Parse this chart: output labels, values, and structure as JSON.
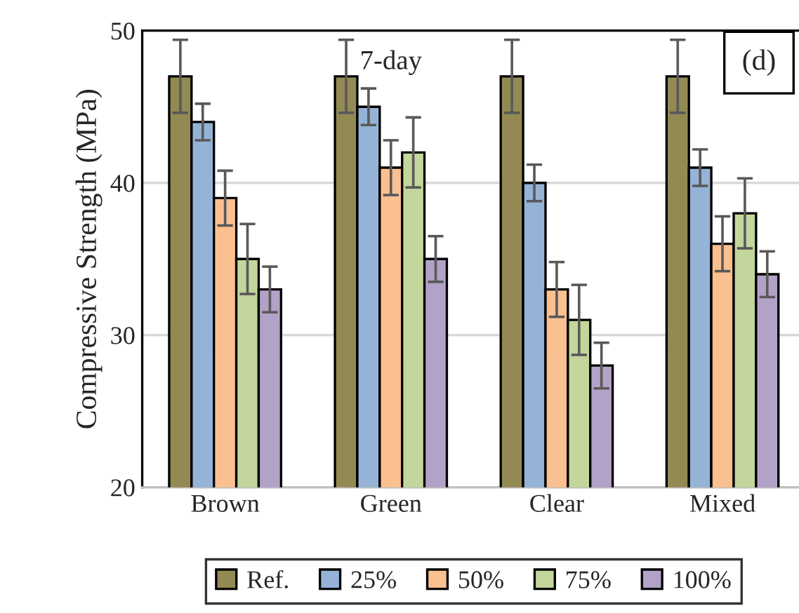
{
  "chart_data": {
    "type": "bar",
    "ylabel": "Compressive Strength (MPa)",
    "categories": [
      "Brown",
      "Green",
      "Clear",
      "Mixed"
    ],
    "series": [
      {
        "name": "Ref.",
        "color": "#938953",
        "values": [
          47,
          47,
          47,
          47
        ],
        "errors": [
          2.4,
          2.4,
          2.4,
          2.4
        ]
      },
      {
        "name": "25%",
        "color": "#95b3d7",
        "values": [
          44,
          45,
          40,
          41
        ],
        "errors": [
          1.2,
          1.2,
          1.2,
          1.2
        ]
      },
      {
        "name": "50%",
        "color": "#fac090",
        "values": [
          39,
          41,
          33,
          36
        ],
        "errors": [
          1.8,
          1.8,
          1.8,
          1.8
        ]
      },
      {
        "name": "75%",
        "color": "#c3d69b",
        "values": [
          35,
          42,
          31,
          38
        ],
        "errors": [
          2.3,
          2.3,
          2.3,
          2.3
        ]
      },
      {
        "name": "100%",
        "color": "#b2a2c7",
        "values": [
          33,
          35,
          28,
          34
        ],
        "errors": [
          1.5,
          1.5,
          1.5,
          1.5
        ]
      }
    ],
    "annotations": [
      "7-day",
      "(d)"
    ],
    "ylim": [
      20,
      50
    ],
    "yticks": [
      20,
      30,
      40,
      50
    ],
    "grid": "y",
    "legend": "bottom"
  }
}
